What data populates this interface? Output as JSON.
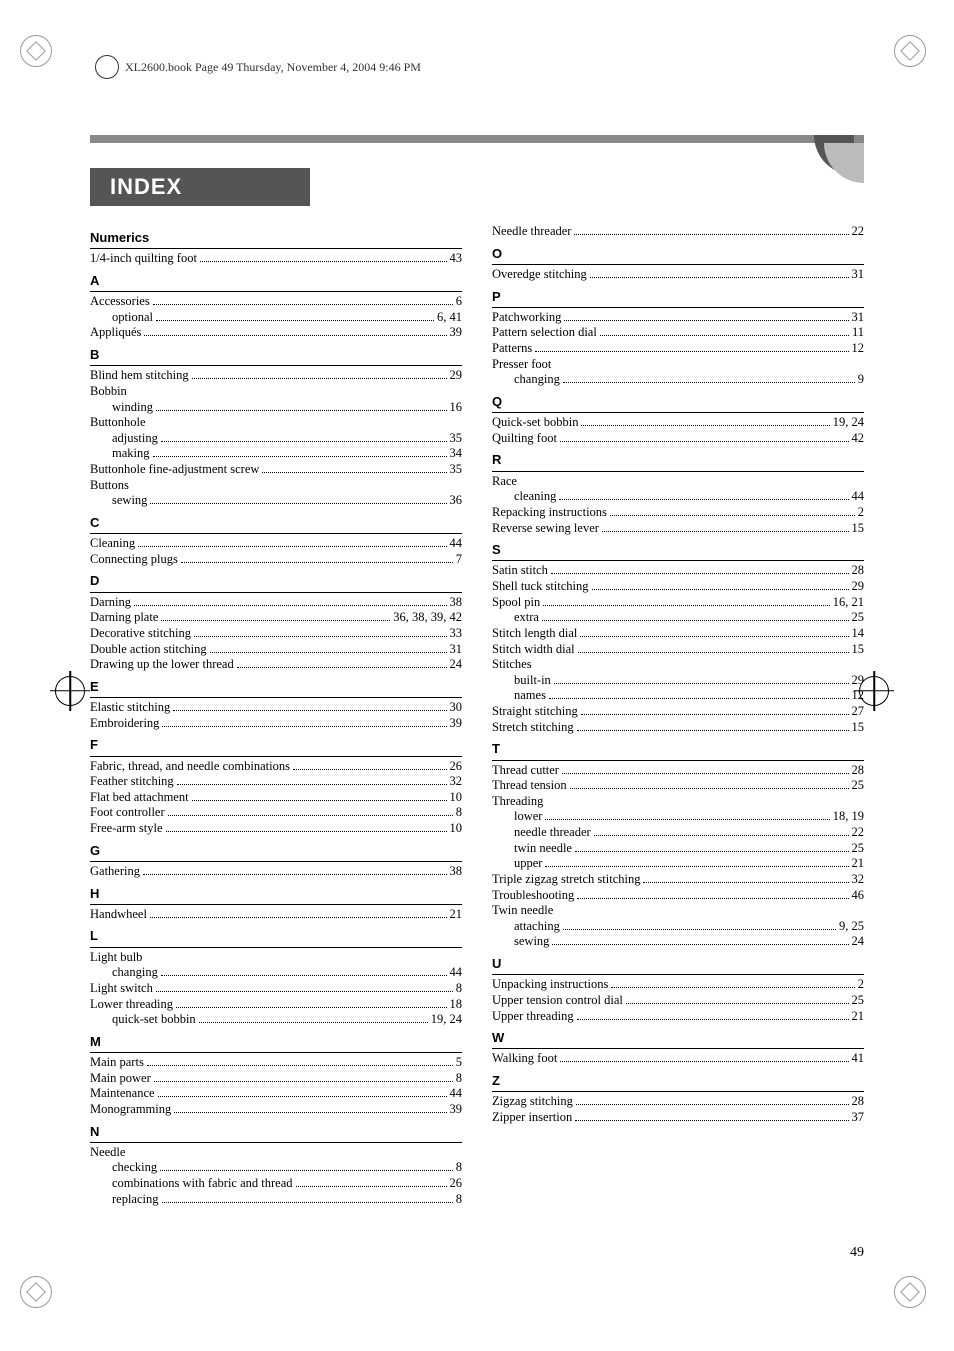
{
  "header_text": "XL2600.book  Page 49  Thursday, November 4, 2004  9:46 PM",
  "title": "INDEX",
  "page_number": "49",
  "left": [
    {
      "head": "Numerics"
    },
    {
      "t": "1/4-inch quilting foot",
      "p": "43"
    },
    {
      "head": "A"
    },
    {
      "t": "Accessories",
      "p": "6"
    },
    {
      "t": "optional",
      "p": "6, 41",
      "sub": true
    },
    {
      "t": "Appliqués",
      "p": "39"
    },
    {
      "head": "B"
    },
    {
      "t": "Blind hem stitching",
      "p": "29"
    },
    {
      "t": "Bobbin",
      "nopage": true
    },
    {
      "t": "winding",
      "p": "16",
      "sub": true
    },
    {
      "t": "Buttonhole",
      "nopage": true
    },
    {
      "t": "adjusting",
      "p": "35",
      "sub": true
    },
    {
      "t": "making",
      "p": "34",
      "sub": true
    },
    {
      "t": "Buttonhole fine-adjustment screw",
      "p": "35"
    },
    {
      "t": "Buttons",
      "nopage": true
    },
    {
      "t": "sewing",
      "p": "36",
      "sub": true
    },
    {
      "head": "C"
    },
    {
      "t": "Cleaning",
      "p": "44"
    },
    {
      "t": "Connecting plugs",
      "p": "7"
    },
    {
      "head": "D"
    },
    {
      "t": "Darning",
      "p": "38"
    },
    {
      "t": "Darning plate",
      "p": "36, 38, 39, 42"
    },
    {
      "t": "Decorative stitching",
      "p": "33"
    },
    {
      "t": "Double action stitching",
      "p": "31"
    },
    {
      "t": "Drawing up the lower thread",
      "p": "24"
    },
    {
      "head": "E"
    },
    {
      "t": "Elastic stitching",
      "p": "30"
    },
    {
      "t": "Embroidering",
      "p": "39"
    },
    {
      "head": "F"
    },
    {
      "t": "Fabric, thread, and needle combinations",
      "p": "26"
    },
    {
      "t": "Feather stitching",
      "p": "32"
    },
    {
      "t": "Flat bed attachment",
      "p": "10"
    },
    {
      "t": "Foot controller",
      "p": "8"
    },
    {
      "t": "Free-arm style",
      "p": "10"
    },
    {
      "head": "G"
    },
    {
      "t": "Gathering",
      "p": "38"
    },
    {
      "head": "H"
    },
    {
      "t": "Handwheel",
      "p": "21"
    },
    {
      "head": "L"
    },
    {
      "t": "Light bulb",
      "nopage": true
    },
    {
      "t": "changing",
      "p": "44",
      "sub": true
    },
    {
      "t": "Light switch",
      "p": "8"
    },
    {
      "t": "Lower threading",
      "p": "18"
    },
    {
      "t": "quick-set bobbin",
      "p": "19, 24",
      "sub": true
    },
    {
      "head": "M"
    },
    {
      "t": "Main parts",
      "p": "5"
    },
    {
      "t": "Main power",
      "p": "8"
    },
    {
      "t": "Maintenance",
      "p": "44"
    },
    {
      "t": "Monogramming",
      "p": "39"
    },
    {
      "head": "N"
    },
    {
      "t": "Needle",
      "nopage": true
    },
    {
      "t": "checking",
      "p": "8",
      "sub": true
    },
    {
      "t": "combinations with fabric and thread",
      "p": "26",
      "sub": true
    },
    {
      "t": "replacing",
      "p": "8",
      "sub": true
    }
  ],
  "right": [
    {
      "t": "Needle threader",
      "p": "22"
    },
    {
      "head": "O"
    },
    {
      "t": "Overedge stitching",
      "p": "31"
    },
    {
      "head": "P"
    },
    {
      "t": "Patchworking",
      "p": "31"
    },
    {
      "t": "Pattern selection dial",
      "p": "11"
    },
    {
      "t": "Patterns",
      "p": "12"
    },
    {
      "t": "Presser foot",
      "nopage": true
    },
    {
      "t": "changing",
      "p": "9",
      "sub": true
    },
    {
      "head": "Q"
    },
    {
      "t": "Quick-set bobbin",
      "p": "19, 24"
    },
    {
      "t": "Quilting foot",
      "p": "42"
    },
    {
      "head": "R"
    },
    {
      "t": "Race",
      "nopage": true
    },
    {
      "t": "cleaning",
      "p": "44",
      "sub": true
    },
    {
      "t": "Repacking instructions",
      "p": "2"
    },
    {
      "t": "Reverse sewing lever",
      "p": "15"
    },
    {
      "head": "S"
    },
    {
      "t": "Satin stitch",
      "p": "28"
    },
    {
      "t": "Shell tuck stitching",
      "p": "29"
    },
    {
      "t": "Spool pin",
      "p": "16, 21"
    },
    {
      "t": "extra",
      "p": "25",
      "sub": true
    },
    {
      "t": "Stitch length dial",
      "p": "14"
    },
    {
      "t": "Stitch width dial",
      "p": "15"
    },
    {
      "t": "Stitches",
      "nopage": true
    },
    {
      "t": "built-in",
      "p": "29",
      "sub": true
    },
    {
      "t": "names",
      "p": "12",
      "sub": true
    },
    {
      "t": "Straight stitching",
      "p": "27"
    },
    {
      "t": "Stretch stitching",
      "p": "15"
    },
    {
      "head": "T"
    },
    {
      "t": "Thread cutter",
      "p": "28"
    },
    {
      "t": "Thread tension",
      "p": "25"
    },
    {
      "t": "Threading",
      "nopage": true
    },
    {
      "t": "lower",
      "p": "18, 19",
      "sub": true
    },
    {
      "t": "needle threader",
      "p": "22",
      "sub": true
    },
    {
      "t": "twin needle",
      "p": "25",
      "sub": true
    },
    {
      "t": "upper",
      "p": "21",
      "sub": true
    },
    {
      "t": "Triple zigzag stretch stitching",
      "p": "32"
    },
    {
      "t": "Troubleshooting",
      "p": "46"
    },
    {
      "t": "Twin needle",
      "nopage": true
    },
    {
      "t": "attaching",
      "p": "9, 25",
      "sub": true
    },
    {
      "t": "sewing",
      "p": "24",
      "sub": true
    },
    {
      "head": "U"
    },
    {
      "t": "Unpacking instructions",
      "p": "2"
    },
    {
      "t": "Upper tension control dial",
      "p": "25"
    },
    {
      "t": "Upper threading",
      "p": "21"
    },
    {
      "head": "W"
    },
    {
      "t": "Walking foot",
      "p": "41"
    },
    {
      "head": "Z"
    },
    {
      "t": "Zigzag stitching",
      "p": "28"
    },
    {
      "t": "Zipper insertion",
      "p": "37"
    }
  ]
}
